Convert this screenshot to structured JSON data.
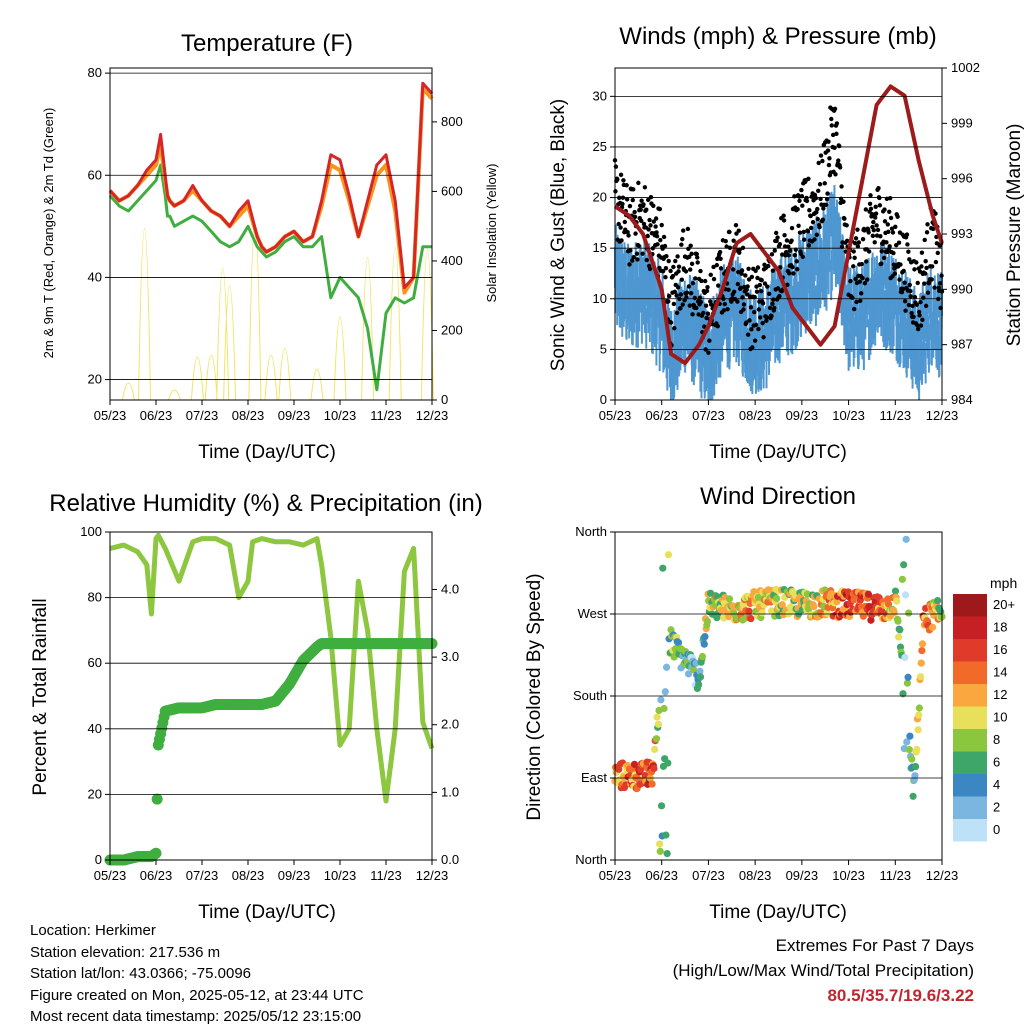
{
  "footer": {
    "location": "Location: Herkimer",
    "elevation": "Station elevation: 217.536 m",
    "latlon": "Station lat/lon: 43.0366; -75.0096",
    "created": "Figure created on Mon, 2025-05-12, at 23:44 UTC",
    "recent": "Most recent data timestamp: 2025/05/12 23:15:00",
    "extremes_title": "Extremes For Past 7 Days",
    "extremes_subtitle": "(High/Low/Max Wind/Total Precipitation)",
    "extremes_values": "80.5/35.7/19.6/3.22"
  },
  "colors": {
    "temp2m": "#d62728",
    "temp9m": "#f7941d",
    "dewpoint": "#3fae3f",
    "solar": "#f5e263",
    "gust": "#000000",
    "wind": "#4e97d1",
    "pressure": "#9e1b1b",
    "rh": "#8dc63f",
    "precip": "#3fae3f",
    "extremes": "#c0272d"
  },
  "x_ticks": [
    "05/23",
    "06/23",
    "07/23",
    "08/23",
    "09/23",
    "10/23",
    "11/23",
    "12/23"
  ],
  "chart_data": [
    {
      "id": "temperature",
      "type": "line",
      "title": "Temperature (F)",
      "xlabel": "Time (Day/UTC)",
      "ylabel": "2m & 9m T (Red, Orange) & 2m Td (Green)",
      "y2label": "Solar Insolation (Yellow)",
      "ylim": [
        16,
        81
      ],
      "yticks": [
        20,
        40,
        60,
        80
      ],
      "y2lim": [
        0,
        955
      ],
      "y2ticks": [
        0,
        200,
        400,
        600,
        800
      ],
      "x": [
        0,
        0.2,
        0.4,
        0.6,
        0.8,
        1,
        1.1,
        1.2,
        1.25,
        1.3,
        1.4,
        1.6,
        1.8,
        2,
        2.2,
        2.4,
        2.6,
        2.8,
        3,
        3.2,
        3.3,
        3.4,
        3.6,
        3.8,
        4,
        4.2,
        4.4,
        4.6,
        4.8,
        5,
        5.2,
        5.4,
        5.6,
        5.8,
        6,
        6.2,
        6.4,
        6.6,
        6.8,
        7
      ],
      "series": [
        {
          "name": "2m T",
          "values": [
            57,
            55,
            56,
            58,
            61,
            63,
            68,
            60,
            56,
            55,
            54,
            55,
            58,
            55,
            53,
            52,
            50,
            53,
            55,
            48,
            46,
            45,
            46,
            48,
            49,
            47,
            48,
            55,
            64,
            63,
            56,
            48,
            55,
            62,
            64,
            55,
            38,
            40,
            78,
            76
          ]
        },
        {
          "name": "9m T",
          "values": [
            57,
            55,
            56,
            58,
            60,
            62,
            66,
            59,
            56,
            55,
            54,
            55,
            57,
            55,
            53,
            52,
            50,
            52,
            54,
            48,
            46,
            45,
            46,
            48,
            49,
            47,
            48,
            54,
            62,
            61,
            55,
            48,
            54,
            60,
            62,
            53,
            37,
            40,
            77,
            75
          ]
        },
        {
          "name": "2m Td",
          "values": [
            56,
            54,
            53,
            55,
            57,
            59,
            62,
            56,
            52,
            52,
            50,
            51,
            52,
            51,
            49,
            47,
            46,
            47,
            50,
            46,
            45,
            44,
            45,
            47,
            48,
            46,
            46,
            48,
            36,
            40,
            38,
            36,
            30,
            18,
            33,
            36,
            35,
            36,
            46,
            46
          ]
        },
        {
          "name": "Solar Insolation",
          "peaks": [
            [
              0.4,
              40
            ],
            [
              0.75,
              930
            ],
            [
              1.4,
              0
            ],
            [
              1.9,
              190
            ],
            [
              2.2,
              200
            ],
            [
              2.45,
              700
            ],
            [
              2.6,
              600
            ],
            [
              3.15,
              955
            ],
            [
              3.5,
              200
            ],
            [
              3.8,
              240
            ],
            [
              4.5,
              120
            ],
            [
              5.0,
              420
            ],
            [
              5.6,
              760
            ],
            [
              6.2,
              820
            ],
            [
              6.9,
              810
            ]
          ]
        }
      ]
    },
    {
      "id": "winds",
      "type": "scatter",
      "title": "Winds (mph) & Pressure (mb)",
      "xlabel": "Time (Day/UTC)",
      "ylabel": "Sonic Wind & Gust (Blue, Black)",
      "y2label": "Station Pressure (Maroon)",
      "ylim": [
        0,
        32.8
      ],
      "yticks": [
        0,
        5,
        10,
        15,
        20,
        25,
        30
      ],
      "y2lim": [
        984,
        1002
      ],
      "y2ticks": [
        984,
        987,
        990,
        993,
        996,
        999,
        1002
      ],
      "x": [
        0,
        0.3,
        0.6,
        1,
        1.2,
        1.5,
        1.8,
        2,
        2.3,
        2.6,
        2.9,
        3.2,
        3.5,
        3.8,
        4.1,
        4.4,
        4.7,
        5,
        5.3,
        5.6,
        5.9,
        6.2,
        6.5,
        6.8,
        7
      ],
      "series": [
        {
          "name": "Gust",
          "values": [
            20,
            17,
            18,
            15,
            9,
            14,
            10,
            8,
            12,
            14,
            9,
            10,
            14,
            16,
            18,
            20,
            27,
            12,
            14,
            18,
            16,
            13,
            10,
            16,
            11
          ]
        },
        {
          "name": "Wind",
          "values": [
            12,
            10,
            11,
            8,
            4,
            8,
            6,
            4,
            8,
            9,
            6,
            6,
            9,
            10,
            12,
            13,
            16,
            8,
            8,
            11,
            10,
            8,
            5,
            9,
            7
          ]
        },
        {
          "name": "Pressure",
          "values": [
            994.5,
            994,
            993,
            990,
            986.5,
            986,
            987,
            988,
            990,
            992.5,
            993,
            992,
            991,
            989,
            988,
            987,
            988,
            992,
            996,
            1000,
            1001,
            1000.5,
            997,
            994,
            992.5
          ]
        }
      ]
    },
    {
      "id": "rh",
      "type": "line",
      "title": "Relative Humidity (%) & Precipitation (in)",
      "xlabel": "Time (Day/UTC)",
      "ylabel": "Percent & Total Rainfall",
      "ylim": [
        0,
        100
      ],
      "yticks": [
        0,
        20,
        40,
        60,
        80,
        100
      ],
      "y2lim": [
        0,
        4.85
      ],
      "y2ticks": [
        0.0,
        1.0,
        2.0,
        3.0,
        4.0
      ],
      "y2ticklabels": [
        "0.0",
        "1.0",
        "2.0",
        "3.0",
        "4.0"
      ],
      "x": [
        0,
        0.3,
        0.6,
        0.8,
        0.9,
        1,
        1.05,
        1.2,
        1.5,
        1.8,
        2,
        2.3,
        2.6,
        2.8,
        3,
        3.1,
        3.3,
        3.6,
        3.9,
        4.2,
        4.5,
        4.6,
        4.8,
        5,
        5.2,
        5.4,
        5.6,
        5.8,
        6,
        6.2,
        6.4,
        6.6,
        6.8,
        7
      ],
      "series": [
        {
          "name": "RH",
          "values": [
            95,
            96,
            94,
            90,
            75,
            98,
            99,
            95,
            85,
            97,
            98,
            98,
            96,
            80,
            85,
            97,
            98,
            97,
            97,
            96,
            98,
            90,
            68,
            35,
            40,
            85,
            70,
            40,
            18,
            40,
            88,
            95,
            42,
            34
          ]
        },
        {
          "name": "Total Rainfall",
          "values": [
            0,
            0,
            0.05,
            0.05,
            0.05,
            0.1,
            1.7,
            2.2,
            2.25,
            2.25,
            2.25,
            2.3,
            2.3,
            2.3,
            2.3,
            2.3,
            2.3,
            2.35,
            2.6,
            2.95,
            3.15,
            3.2,
            3.2,
            3.2,
            3.2,
            3.2,
            3.2,
            3.2,
            3.2,
            3.2,
            3.2,
            3.2,
            3.2,
            3.2
          ]
        }
      ]
    },
    {
      "id": "direction",
      "type": "scatter",
      "title": "Wind Direction",
      "xlabel": "Time (Day/UTC)",
      "ylabel": "Direction (Colored By Speed)",
      "ylim": [
        0,
        360
      ],
      "yticks": [
        0,
        90,
        180,
        270,
        360
      ],
      "yticklabels": [
        "North",
        "East",
        "South",
        "West",
        "North"
      ],
      "legend_title": "mph",
      "legend_labels": [
        "20+",
        "18",
        "16",
        "14",
        "12",
        "10",
        "8",
        "6",
        "4",
        "2",
        "0"
      ],
      "legend_colors": [
        "#9e1a1a",
        "#c62025",
        "#e03a2a",
        "#f26a2a",
        "#f9a73e",
        "#e8e05a",
        "#8cc63f",
        "#3fa66a",
        "#3a87c4",
        "#7ab6e0",
        "#bde2f7"
      ],
      "x": [
        0,
        0.3,
        0.6,
        0.8,
        1,
        1.2,
        1.4,
        1.6,
        1.8,
        2,
        2.5,
        3,
        3.5,
        4,
        4.5,
        5,
        5.5,
        5.8,
        6,
        6.2,
        6.4,
        6.6,
        6.8,
        7
      ],
      "values": [
        92,
        93,
        92,
        95,
        190,
        240,
        225,
        215,
        200,
        280,
        275,
        280,
        283,
        280,
        282,
        280,
        278,
        276,
        285,
        200,
        70,
        260,
        270,
        270
      ],
      "speeds": [
        13,
        14,
        15,
        16,
        5,
        8,
        6,
        3,
        4,
        9,
        10,
        12,
        10,
        9,
        11,
        16,
        14,
        12,
        10,
        3,
        5,
        14,
        12,
        8
      ]
    }
  ]
}
